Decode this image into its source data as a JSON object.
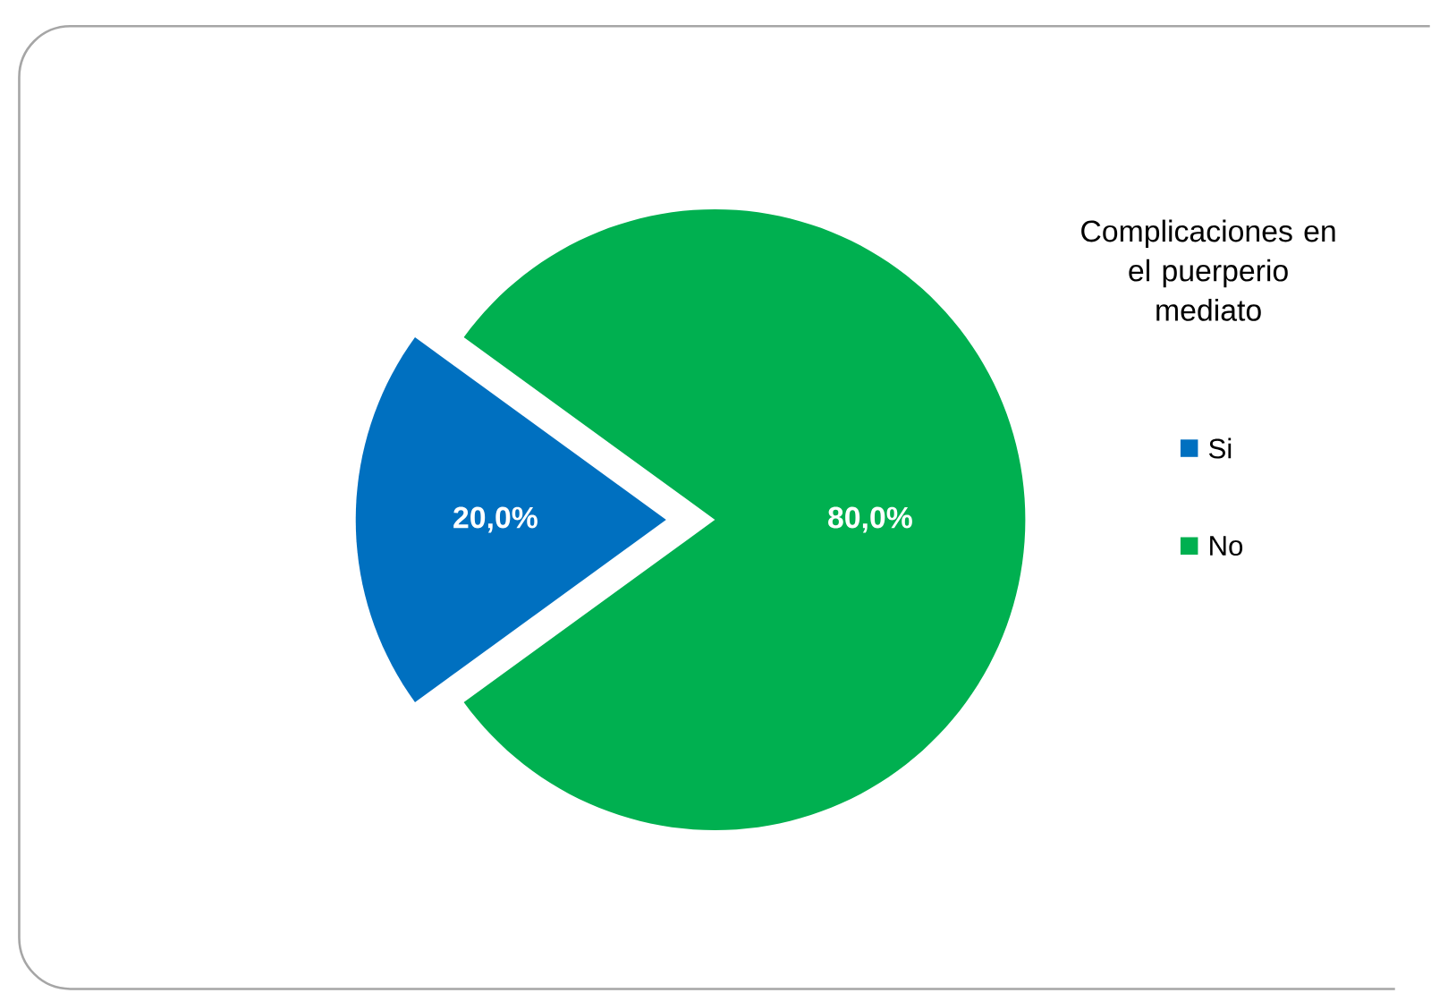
{
  "chart_data": {
    "type": "pie",
    "legend_title": "Complicaciones en el puerperio mediato",
    "categories": [
      "Si",
      "No"
    ],
    "values": [
      20,
      80
    ],
    "colors": [
      "#0070c0",
      "#00b050"
    ],
    "value_labels": [
      "20,0%",
      "80,0%"
    ],
    "legend": "right"
  }
}
